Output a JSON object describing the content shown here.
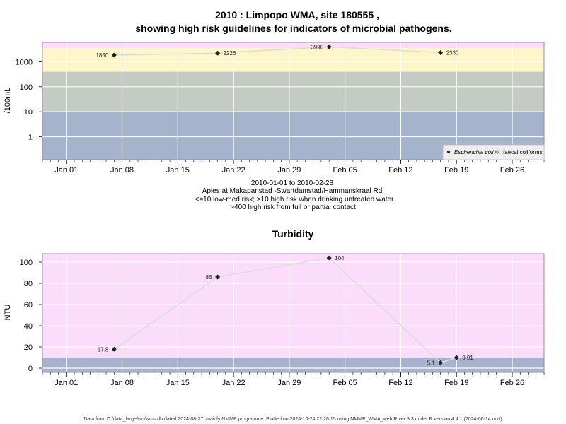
{
  "colors": {
    "background": "#ffffff",
    "band_low": "#a3b4cc",
    "band_mid": "#c3cbc2",
    "band_high": "#fdf6c9",
    "band_top": "#fbdcf9",
    "turbidity_low": "#a6b3cd",
    "turbidity_high": "#fbdcfb",
    "plot_border": "#a77fae",
    "grid": "#ffffff",
    "line": "#dcdcdc",
    "marker": "#222222"
  },
  "micro_panel": {
    "title_line1": "2010 : Limpopo WMA, site 180555 ,",
    "title_line2": "showing high risk guidelines for indicators of microbial pathogens.",
    "subtitle_lines": [
      "2010-01-01 to 2010-02-28",
      "Apies at Makapanstad -Swartdamstad/Hammanskraal Rd",
      "<=10 low-med risk; >10 high risk when drinking untreated water",
      ">400 high risk from full or partial contact"
    ],
    "legend": {
      "ecoli": "Escherichia coli",
      "faecal": "faecal coliforms"
    }
  },
  "turbidity_panel": {
    "title": "Turbidity"
  },
  "x_ticks": [
    "Jan 01",
    "Jan 08",
    "Jan 15",
    "Jan 22",
    "Jan 29",
    "Feb 05",
    "Feb 12",
    "Feb 19",
    "Feb 26"
  ],
  "footer": "Data from D:/data_large/wq/wms.db dated 2024-08-27, mainly NMMP programme. Plotted on 2024-10-24 22:26:15 using NMMP_WMA_web.R ver 9.3 under R version 4.4.1 (2024-06-14 ucrt)",
  "chart_data": [
    {
      "type": "scatter",
      "title": "2010 : Limpopo WMA, site 180555 , showing high risk guidelines for indicators of microbial pathogens.",
      "ylabel": "/100mL",
      "y_scale": "log",
      "ylim": [
        0.12,
        6000
      ],
      "xlim": [
        "2009-12-29",
        "2010-03-02"
      ],
      "y_ticks": [
        "1",
        "10",
        "100",
        "1000"
      ],
      "y_tick_values": [
        1,
        10,
        100,
        1000
      ],
      "bands": [
        {
          "from": 0.12,
          "to": 10,
          "color": "#a3b4cc"
        },
        {
          "from": 10,
          "to": 400,
          "color": "#c3cbc2"
        },
        {
          "from": 400,
          "to": 3500,
          "color": "#fdf6c9"
        },
        {
          "from": 3500,
          "to": 6000,
          "color": "#fbdcf9"
        }
      ],
      "legend_position": "bottom-right",
      "series": [
        {
          "name": "Escherichia coli",
          "points": [
            {
              "x": "2010-01-07",
              "y": 1850,
              "label": "1850",
              "label_side": "left"
            },
            {
              "x": "2010-01-20",
              "y": 2226,
              "label": "2226",
              "label_side": "right"
            },
            {
              "x": "2010-02-03",
              "y": 3990,
              "label": "3990",
              "label_side": "left"
            },
            {
              "x": "2010-02-17",
              "y": 2330,
              "label": "2330",
              "label_side": "right"
            }
          ]
        },
        {
          "name": "faecal coliforms",
          "points": []
        }
      ]
    },
    {
      "type": "scatter",
      "title": "Turbidity",
      "ylabel": "NTU",
      "ylim": [
        -4,
        108
      ],
      "xlim": [
        "2009-12-29",
        "2010-03-02"
      ],
      "y_ticks": [
        "0",
        "20",
        "40",
        "60",
        "80",
        "100"
      ],
      "y_tick_values": [
        0,
        20,
        40,
        60,
        80,
        100
      ],
      "bands": [
        {
          "from": -4,
          "to": 10,
          "color": "#a6b3cd"
        },
        {
          "from": 10,
          "to": 108,
          "color": "#fbdcfb"
        }
      ],
      "series": [
        {
          "name": "Turbidity",
          "points": [
            {
              "x": "2010-01-07",
              "y": 17.8,
              "label": "17.8",
              "label_side": "left"
            },
            {
              "x": "2010-01-20",
              "y": 86,
              "label": "86",
              "label_side": "left"
            },
            {
              "x": "2010-02-03",
              "y": 104,
              "label": "104",
              "label_side": "right"
            },
            {
              "x": "2010-02-17",
              "y": 5.1,
              "label": "5.1",
              "label_side": "left"
            },
            {
              "x": "2010-02-19",
              "y": 9.91,
              "label": "9.91",
              "label_side": "right"
            }
          ]
        }
      ]
    }
  ]
}
